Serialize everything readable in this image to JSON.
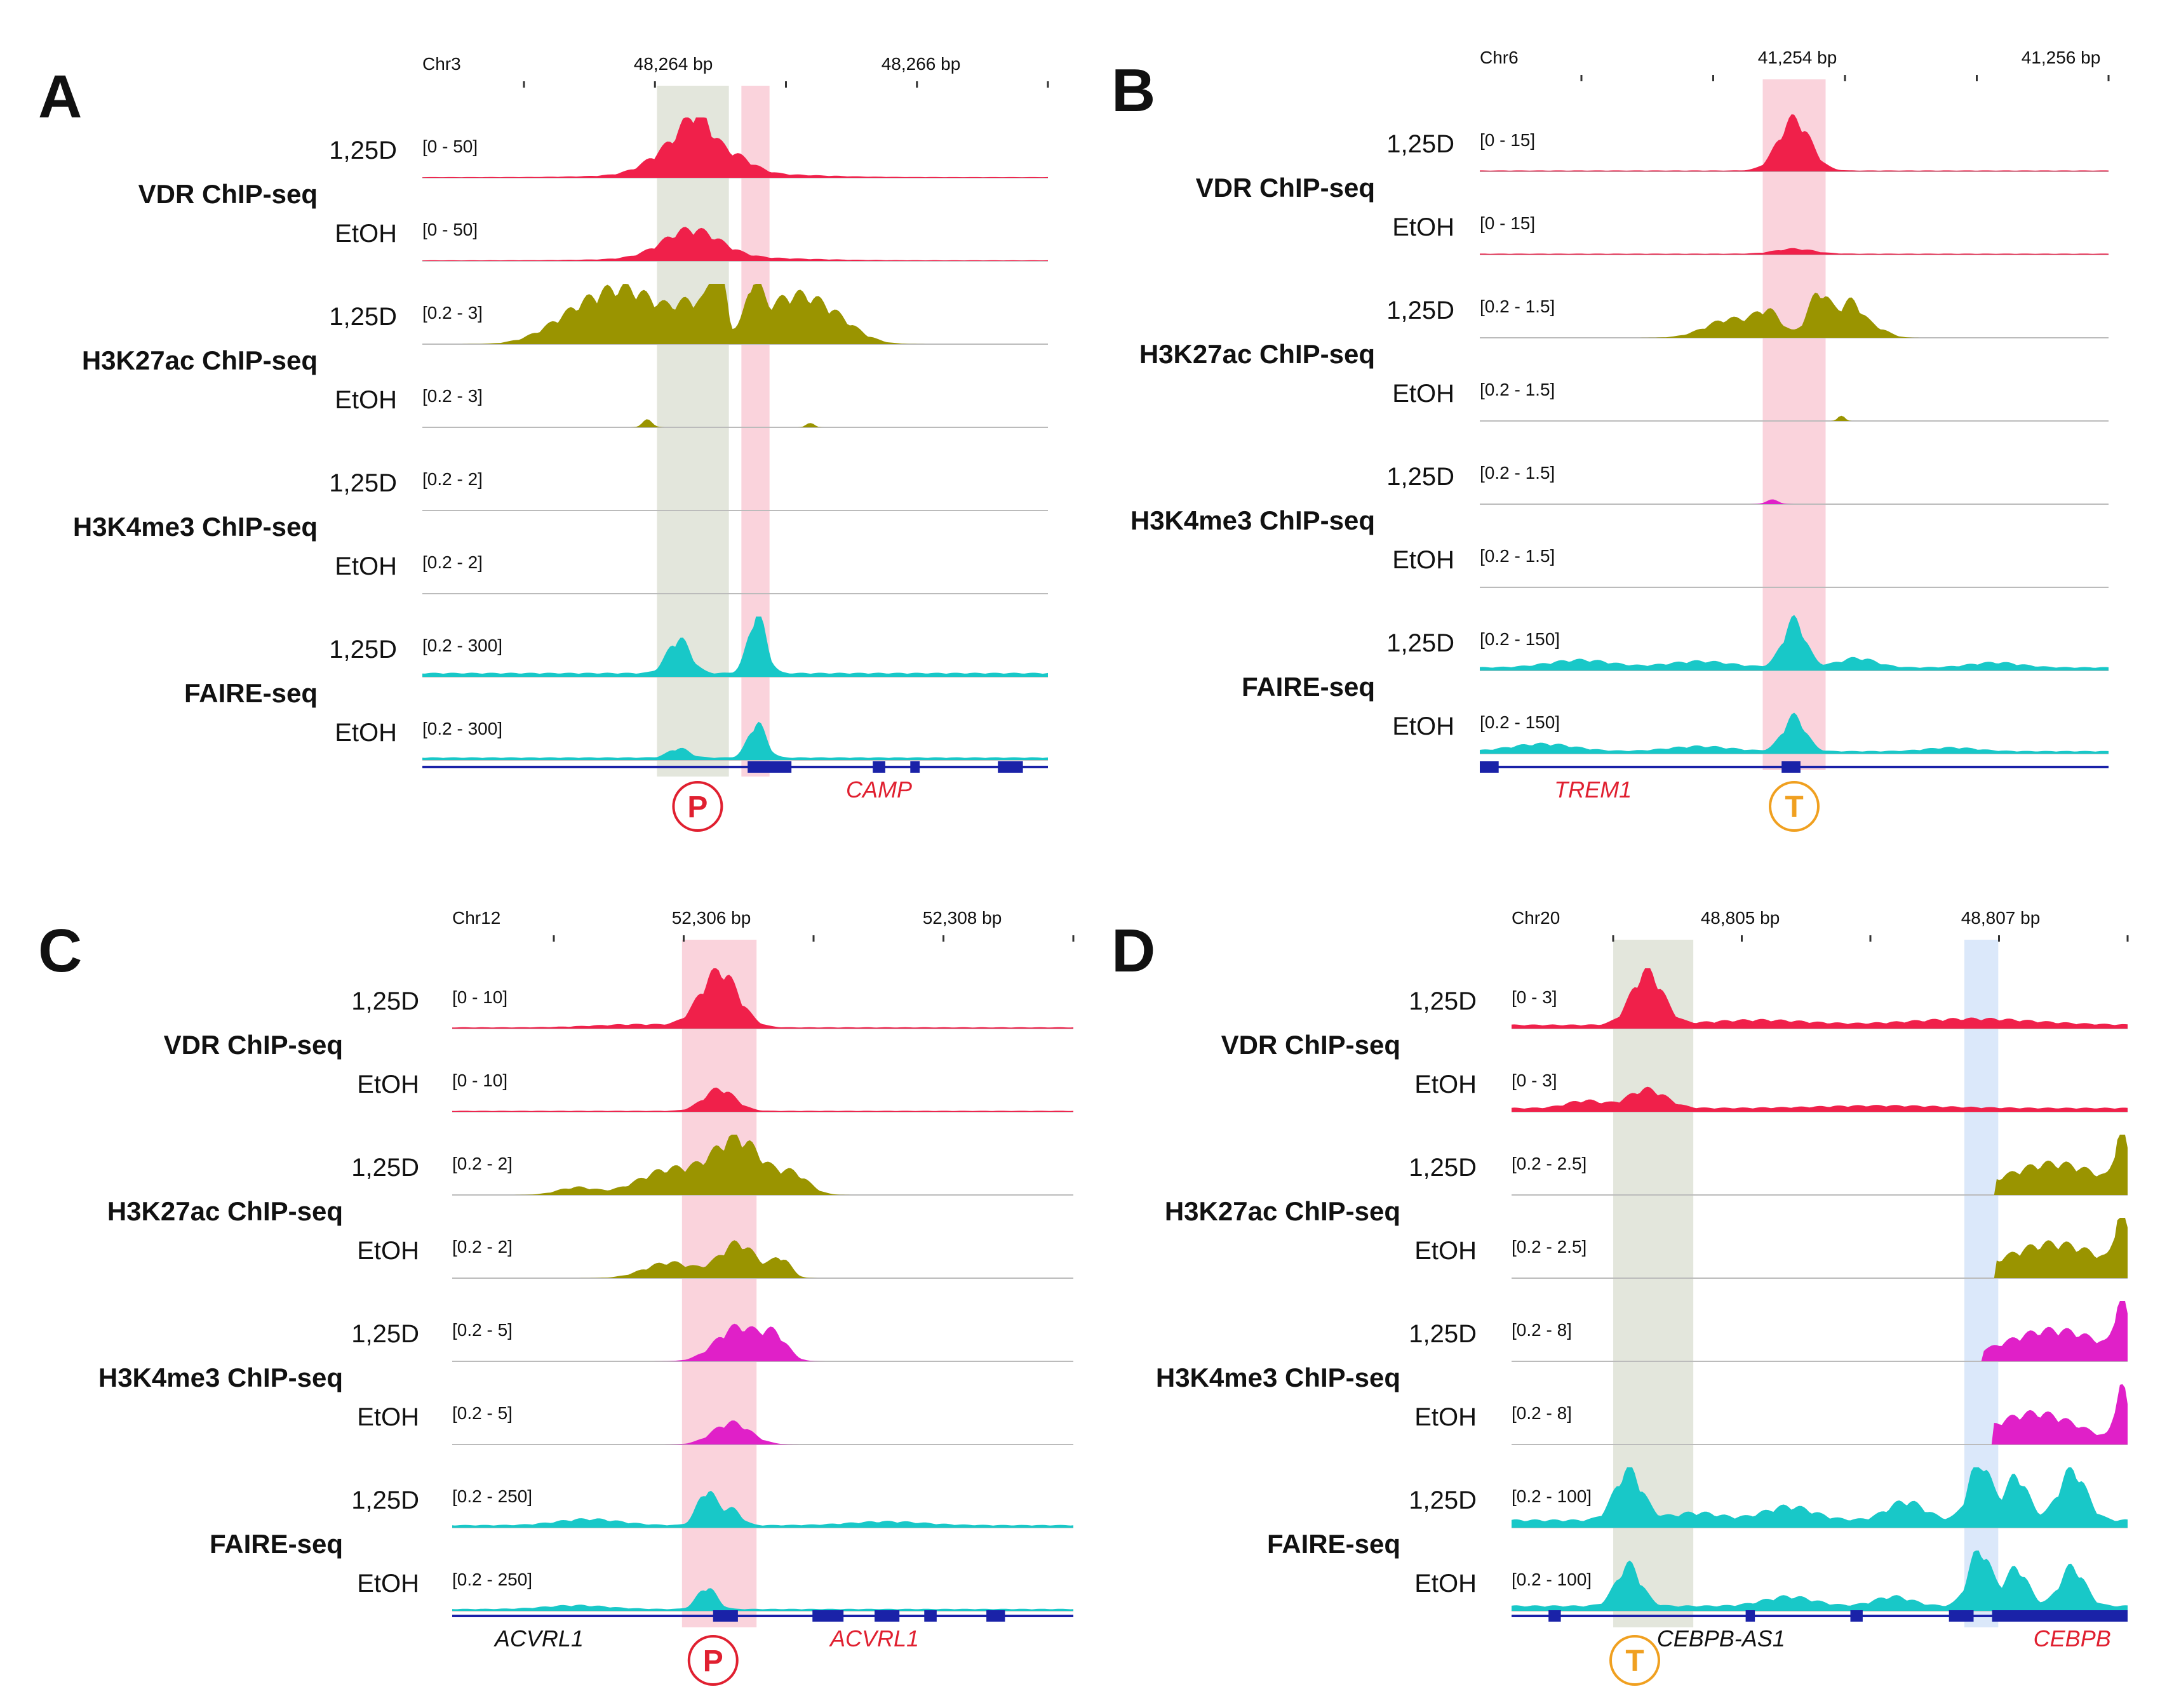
{
  "figure": {
    "panels": [
      {
        "letter": "A",
        "chrom": "Chr3",
        "ticks": [
          "48,264 bp",
          "48,266 bp"
        ],
        "highlights": [
          {
            "color": "#d9ddd0",
            "start": 0.375,
            "end": 0.49
          },
          {
            "color": "#f8c4d0",
            "start": 0.51,
            "end": 0.555
          }
        ],
        "tracks": [
          {
            "group": "VDR ChIP-seq",
            "condition": "1,25D",
            "range": "[0 - 50]",
            "color": "#f0204a",
            "peaks": [
              [
                0.42,
                0.045,
                0.55
              ],
              [
                0.44,
                0.02,
                0.45
              ],
              [
                0.5,
                0.03,
                0.2
              ],
              [
                0.47,
                0.12,
                0.07
              ]
            ],
            "base": 0.01
          },
          {
            "group": "VDR ChIP-seq",
            "condition": "EtOH",
            "range": "[0 - 50]",
            "color": "#f0204a",
            "peaks": [
              [
                0.43,
                0.045,
                0.45
              ],
              [
                0.47,
                0.12,
                0.05
              ]
            ],
            "base": 0.01
          },
          {
            "group": "H3K27ac ChIP-seq",
            "condition": "1,25D",
            "range": "[0.2 - 3]",
            "color": "#9a9400",
            "peaks": [
              [
                0.33,
                0.06,
                0.82
              ],
              [
                0.24,
                0.05,
                0.3
              ],
              [
                0.44,
                0.03,
                0.52
              ],
              [
                0.47,
                0.01,
                0.9
              ],
              [
                0.48,
                0.006,
                0.5
              ],
              [
                0.53,
                0.012,
                0.7
              ],
              [
                0.59,
                0.05,
                0.72
              ],
              [
                0.66,
                0.04,
                0.25
              ]
            ],
            "base": 0.0
          },
          {
            "group": "H3K27ac ChIP-seq",
            "condition": "EtOH",
            "range": "[0.2 - 3]",
            "color": "#9a9400",
            "peaks": [
              [
                0.36,
                0.008,
                0.12
              ],
              [
                0.62,
                0.006,
                0.08
              ]
            ],
            "base": 0.0
          },
          {
            "group": "H3K4me3 ChIP-seq",
            "condition": "1,25D",
            "range": "[0.2 - 2]",
            "color": "#e020c8",
            "peaks": [],
            "base": 0.0
          },
          {
            "group": "H3K4me3 ChIP-seq",
            "condition": "EtOH",
            "range": "[0.2 - 2]",
            "color": "#e020c8",
            "peaks": [],
            "base": 0.0
          },
          {
            "group": "FAIRE-seq",
            "condition": "1,25D",
            "range": "[0.2 - 300]",
            "color": "#18c8c8",
            "peaks": [
              [
                0.41,
                0.018,
                0.55
              ],
              [
                0.535,
                0.014,
                0.95
              ]
            ],
            "base": 0.06
          },
          {
            "group": "FAIRE-seq",
            "condition": "EtOH",
            "range": "[0.2 - 300]",
            "color": "#18c8c8",
            "peaks": [
              [
                0.41,
                0.016,
                0.15
              ],
              [
                0.535,
                0.014,
                0.55
              ]
            ],
            "base": 0.04
          }
        ],
        "genes": [
          {
            "name": "CAMP",
            "color": "#e02030"
          }
        ],
        "marker": {
          "letter": "P",
          "color": "#e02030"
        }
      },
      {
        "letter": "B",
        "chrom": "Chr6",
        "ticks": [
          "41,254 bp",
          "41,256 bp"
        ],
        "highlights": [
          {
            "color": "#f8c4d0",
            "start": 0.45,
            "end": 0.55
          }
        ],
        "tracks": [
          {
            "group": "VDR ChIP-seq",
            "condition": "1,25D",
            "range": "[0 - 15]",
            "color": "#f0204a",
            "peaks": [
              [
                0.5,
                0.025,
                0.82
              ]
            ],
            "base": 0.015
          },
          {
            "group": "VDR ChIP-seq",
            "condition": "EtOH",
            "range": "[0 - 15]",
            "color": "#f0204a",
            "peaks": [
              [
                0.5,
                0.03,
                0.08
              ]
            ],
            "base": 0.015
          },
          {
            "group": "H3K27ac ChIP-seq",
            "condition": "1,25D",
            "range": "[0.2 - 1.5]",
            "color": "#9a9400",
            "peaks": [
              [
                0.4,
                0.04,
                0.3
              ],
              [
                0.46,
                0.02,
                0.35
              ],
              [
                0.54,
                0.018,
                0.72
              ],
              [
                0.59,
                0.018,
                0.55
              ],
              [
                0.63,
                0.02,
                0.15
              ]
            ],
            "base": 0.0
          },
          {
            "group": "H3K27ac ChIP-seq",
            "condition": "EtOH",
            "range": "[0.2 - 1.5]",
            "color": "#9a9400",
            "peaks": [
              [
                0.575,
                0.005,
                0.1
              ]
            ],
            "base": 0.0
          },
          {
            "group": "H3K4me3 ChIP-seq",
            "condition": "1,25D",
            "range": "[0.2 - 1.5]",
            "color": "#e020c8",
            "peaks": [
              [
                0.465,
                0.01,
                0.07
              ]
            ],
            "base": 0.0
          },
          {
            "group": "H3K4me3 ChIP-seq",
            "condition": "EtOH",
            "range": "[0.2 - 1.5]",
            "color": "#e020c8",
            "peaks": [],
            "base": 0.0
          },
          {
            "group": "FAIRE-seq",
            "condition": "1,25D",
            "range": "[0.2 - 150]",
            "color": "#18c8c8",
            "peaks": [
              [
                0.5,
                0.018,
                0.75
              ],
              [
                0.16,
                0.05,
                0.12
              ],
              [
                0.35,
                0.05,
                0.1
              ],
              [
                0.6,
                0.03,
                0.15
              ],
              [
                0.82,
                0.04,
                0.08
              ]
            ],
            "base": 0.05
          },
          {
            "group": "FAIRE-seq",
            "condition": "EtOH",
            "range": "[0.2 - 150]",
            "color": "#18c8c8",
            "peaks": [
              [
                0.5,
                0.018,
                0.55
              ],
              [
                0.1,
                0.05,
                0.12
              ],
              [
                0.35,
                0.05,
                0.08
              ],
              [
                0.75,
                0.04,
                0.06
              ]
            ],
            "base": 0.04
          }
        ],
        "genes": [
          {
            "name": "TREM1",
            "color": "#e02030"
          }
        ],
        "marker": {
          "letter": "T",
          "color": "#f0a020"
        }
      },
      {
        "letter": "C",
        "chrom": "Chr12",
        "ticks": [
          "52,306 bp",
          "52,308 bp"
        ],
        "highlights": [
          {
            "color": "#f8c4d0",
            "start": 0.37,
            "end": 0.49
          }
        ],
        "tracks": [
          {
            "group": "VDR ChIP-seq",
            "condition": "1,25D",
            "range": "[0 - 10]",
            "color": "#f0204a",
            "peaks": [
              [
                0.43,
                0.03,
                0.9
              ],
              [
                0.3,
                0.07,
                0.05
              ]
            ],
            "base": 0.02
          },
          {
            "group": "VDR ChIP-seq",
            "condition": "EtOH",
            "range": "[0 - 10]",
            "color": "#f0204a",
            "peaks": [
              [
                0.43,
                0.025,
                0.35
              ]
            ],
            "base": 0.015
          },
          {
            "group": "H3K27ac ChIP-seq",
            "condition": "1,25D",
            "range": "[0.2 - 2]",
            "color": "#9a9400",
            "peaks": [
              [
                0.46,
                0.04,
                0.88
              ],
              [
                0.35,
                0.05,
                0.4
              ],
              [
                0.2,
                0.03,
                0.12
              ],
              [
                0.55,
                0.025,
                0.3
              ]
            ],
            "base": 0.0
          },
          {
            "group": "H3K27ac ChIP-seq",
            "condition": "EtOH",
            "range": "[0.2 - 2]",
            "color": "#9a9400",
            "peaks": [
              [
                0.46,
                0.03,
                0.55
              ],
              [
                0.35,
                0.04,
                0.25
              ],
              [
                0.53,
                0.015,
                0.3
              ]
            ],
            "base": 0.0
          },
          {
            "group": "H3K4me3 ChIP-seq",
            "condition": "1,25D",
            "range": "[0.2 - 5]",
            "color": "#e020c8",
            "peaks": [
              [
                0.46,
                0.035,
                0.55
              ],
              [
                0.52,
                0.02,
                0.35
              ]
            ],
            "base": 0.0
          },
          {
            "group": "H3K4me3 ChIP-seq",
            "condition": "EtOH",
            "range": "[0.2 - 5]",
            "color": "#e020c8",
            "peaks": [
              [
                0.45,
                0.03,
                0.35
              ]
            ],
            "base": 0.0
          },
          {
            "group": "FAIRE-seq",
            "condition": "1,25D",
            "range": "[0.2 - 250]",
            "color": "#18c8c8",
            "peaks": [
              [
                0.41,
                0.015,
                0.55
              ],
              [
                0.45,
                0.015,
                0.25
              ],
              [
                0.22,
                0.05,
                0.1
              ],
              [
                0.7,
                0.06,
                0.06
              ]
            ],
            "base": 0.04
          },
          {
            "group": "FAIRE-seq",
            "condition": "EtOH",
            "range": "[0.2 - 250]",
            "color": "#18c8c8",
            "peaks": [
              [
                0.41,
                0.015,
                0.35
              ],
              [
                0.2,
                0.05,
                0.06
              ]
            ],
            "base": 0.03
          }
        ],
        "genes": [
          {
            "name": "ACVRL1",
            "color": "#111111"
          },
          {
            "name": "ACVRL1",
            "color": "#e02030"
          }
        ],
        "marker": {
          "letter": "P",
          "color": "#e02030"
        }
      },
      {
        "letter": "D",
        "chrom": "Chr20",
        "ticks": [
          "48,805 bp",
          "48,807 bp"
        ],
        "highlights": [
          {
            "color": "#d9ddd0",
            "start": 0.165,
            "end": 0.295
          },
          {
            "color": "#cfe0f8",
            "start": 0.735,
            "end": 0.79
          }
        ],
        "tracks": [
          {
            "group": "VDR ChIP-seq",
            "condition": "1,25D",
            "range": "[0 - 3]",
            "color": "#f0204a",
            "peaks": [
              [
                0.22,
                0.025,
                0.85
              ],
              [
                0.4,
                0.08,
                0.08
              ],
              [
                0.75,
                0.1,
                0.1
              ]
            ],
            "base": 0.06
          },
          {
            "group": "VDR ChIP-seq",
            "condition": "EtOH",
            "range": "[0 - 3]",
            "color": "#f0204a",
            "peaks": [
              [
                0.22,
                0.03,
                0.3
              ],
              [
                0.12,
                0.03,
                0.12
              ],
              [
                0.6,
                0.1,
                0.04
              ]
            ],
            "base": 0.06
          },
          {
            "group": "H3K27ac ChIP-seq",
            "condition": "1,25D",
            "range": "[0.2 - 2.5]",
            "color": "#9a9400",
            "peaks": [
              [
                0.88,
                0.08,
                0.5
              ],
              [
                0.99,
                0.01,
                0.9
              ]
            ],
            "base": 0.0,
            "startAt": 0.785
          },
          {
            "group": "H3K27ac ChIP-seq",
            "condition": "EtOH",
            "range": "[0.2 - 2.5]",
            "color": "#9a9400",
            "peaks": [
              [
                0.88,
                0.08,
                0.55
              ],
              [
                0.99,
                0.01,
                0.95
              ]
            ],
            "base": 0.0,
            "startAt": 0.785
          },
          {
            "group": "H3K4me3 ChIP-seq",
            "condition": "1,25D",
            "range": "[0.2 - 8]",
            "color": "#e020c8",
            "peaks": [
              [
                0.88,
                0.08,
                0.5
              ],
              [
                0.99,
                0.01,
                0.9
              ]
            ],
            "base": 0.0,
            "startAt": 0.765
          },
          {
            "group": "H3K4me3 ChIP-seq",
            "condition": "EtOH",
            "range": "[0.2 - 8]",
            "color": "#e020c8",
            "peaks": [
              [
                0.85,
                0.07,
                0.5
              ],
              [
                0.99,
                0.01,
                0.9
              ]
            ],
            "base": 0.0,
            "startAt": 0.78
          },
          {
            "group": "FAIRE-seq",
            "condition": "1,25D",
            "range": "[0.2 - 100]",
            "color": "#18c8c8",
            "peaks": [
              [
                0.19,
                0.022,
                0.8
              ],
              [
                0.45,
                0.04,
                0.22
              ],
              [
                0.64,
                0.03,
                0.3
              ],
              [
                0.76,
                0.018,
                0.95
              ],
              [
                0.82,
                0.018,
                0.7
              ],
              [
                0.91,
                0.022,
                0.8
              ],
              [
                0.3,
                0.04,
                0.12
              ]
            ],
            "base": 0.12
          },
          {
            "group": "FAIRE-seq",
            "condition": "EtOH",
            "range": "[0.2 - 100]",
            "color": "#18c8c8",
            "peaks": [
              [
                0.19,
                0.02,
                0.65
              ],
              [
                0.45,
                0.04,
                0.15
              ],
              [
                0.62,
                0.03,
                0.15
              ],
              [
                0.76,
                0.018,
                0.9
              ],
              [
                0.82,
                0.018,
                0.6
              ],
              [
                0.91,
                0.02,
                0.62
              ]
            ],
            "base": 0.08
          }
        ],
        "genes": [
          {
            "name": "CEBPB-AS1",
            "color": "#111111"
          },
          {
            "name": "CEBPB",
            "color": "#e02030"
          }
        ],
        "marker": {
          "letter": "T",
          "color": "#f0a020"
        }
      }
    ]
  }
}
